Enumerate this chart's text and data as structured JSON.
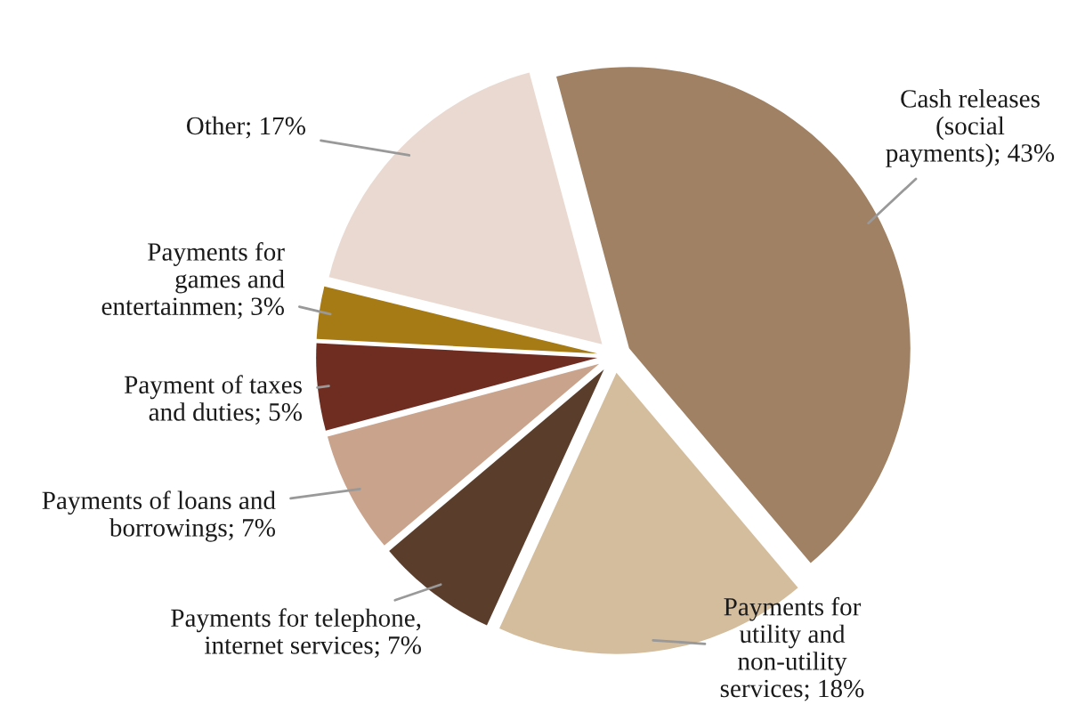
{
  "chart_data": {
    "type": "pie",
    "categories": [
      "Cash releases\n(social\npayments)",
      "Payments for\nutility and\nnon-utility\nservices",
      "Payments for telephone,\ninternet services",
      "Payments of loans and\nborrowings",
      "Payment of taxes\nand duties",
      "Payments for\ngames and\nentertainmen",
      "Other"
    ],
    "values": [
      43,
      18,
      7,
      7,
      5,
      3,
      17
    ],
    "value_labels": [
      "43%",
      "18%",
      "7%",
      "7%",
      "5%",
      "3%",
      "17%"
    ],
    "colors": [
      "#a08163",
      "#d4bd9d",
      "#5a3d2b",
      "#caa38c",
      "#6f2d22",
      "#a67a14",
      "#ead9d1"
    ]
  }
}
